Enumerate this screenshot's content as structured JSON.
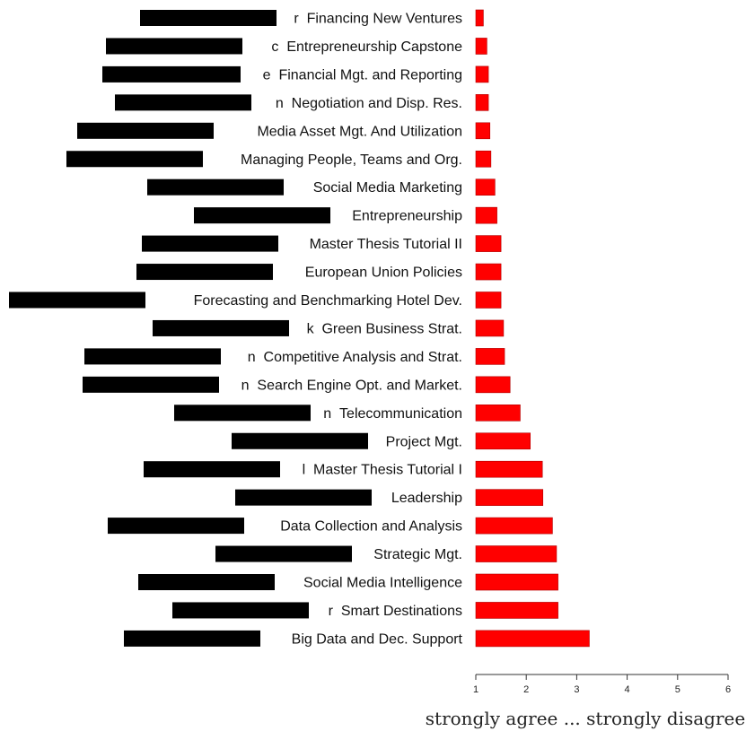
{
  "chart_data": {
    "type": "bar",
    "orientation": "horizontal",
    "categories": [
      "Financing New Ventures",
      "Entrepreneurship Capstone",
      "Financial Mgt. and Reporting",
      "Negotiation and Disp. Res.",
      "Media Asset Mgt. And Utilization",
      "Managing People, Teams and Org.",
      "Social Media Marketing",
      "Entrepreneurship",
      "Master Thesis Tutorial II",
      "European Union Policies",
      "Forecasting and Benchmarking Hotel Dev.",
      "Green Business Strat.",
      "Competitive Analysis and Strat.",
      "Search Engine Opt. and Market.",
      "Telecommunication",
      "Project Mgt.",
      "Master Thesis Tutorial I",
      "Leadership",
      "Data Collection and Analysis",
      "Strategic Mgt.",
      "Social Media Intelligence",
      "Smart Destinations",
      "Big Data and Dec. Support"
    ],
    "label_prefixes": [
      "r",
      "c",
      "e",
      "n",
      "",
      "",
      "",
      "",
      "",
      "",
      "",
      "k",
      "n",
      "n",
      "n",
      "",
      "l",
      "",
      "",
      "",
      "",
      "r",
      ""
    ],
    "values": [
      1.15,
      1.22,
      1.25,
      1.25,
      1.28,
      1.3,
      1.38,
      1.42,
      1.5,
      1.5,
      1.5,
      1.55,
      1.57,
      1.68,
      1.88,
      2.08,
      2.32,
      2.33,
      2.52,
      2.6,
      2.63,
      2.63,
      3.25
    ],
    "bar_color": "#ff0000",
    "redaction_color": "#000000",
    "xlabel": "strongly agree ... strongly disagree",
    "ylabel": "",
    "title": "",
    "xlim": [
      1,
      6
    ],
    "xticks": [
      1,
      2,
      3,
      4,
      5,
      6
    ],
    "grid": false,
    "legend": "none"
  }
}
